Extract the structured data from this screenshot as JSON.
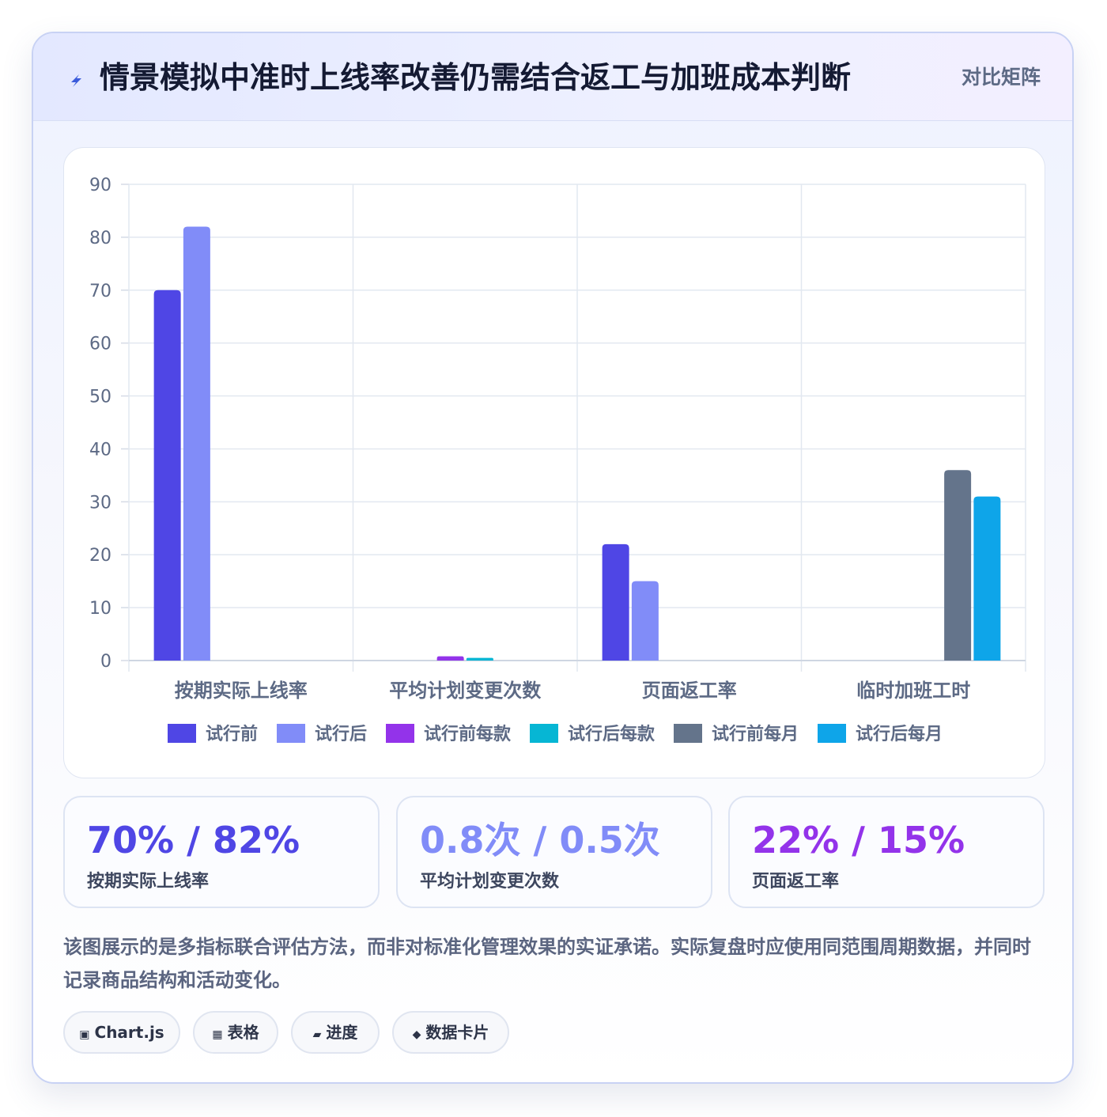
{
  "header": {
    "title": "情景模拟中准时上线率改善仍需结合返工与加班成本判断",
    "badge": "对比矩阵",
    "icon": "lightning-icon"
  },
  "chart_data": {
    "type": "bar",
    "categories": [
      "按期实际上线率",
      "平均计划变更次数",
      "页面返工率",
      "临时加班工时"
    ],
    "ylim": [
      0,
      90
    ],
    "yticks": [
      0,
      10,
      20,
      30,
      40,
      50,
      60,
      70,
      80,
      90
    ],
    "grid": true,
    "legend_position": "bottom",
    "series": [
      {
        "name": "试行前",
        "color": "#4f46e5",
        "values": [
          70,
          null,
          22,
          null
        ]
      },
      {
        "name": "试行后",
        "color": "#818cf8",
        "values": [
          82,
          null,
          15,
          null
        ]
      },
      {
        "name": "试行前每款",
        "color": "#9333ea",
        "values": [
          null,
          0.8,
          null,
          null
        ]
      },
      {
        "name": "试行后每款",
        "color": "#06b6d4",
        "values": [
          null,
          0.5,
          null,
          null
        ]
      },
      {
        "name": "试行前每月",
        "color": "#64748b",
        "values": [
          null,
          null,
          null,
          36
        ]
      },
      {
        "name": "试行后每月",
        "color": "#0ea5e9",
        "values": [
          null,
          null,
          null,
          31
        ]
      }
    ]
  },
  "stats": [
    {
      "value": "70% / 82%",
      "label": "按期实际上线率",
      "color": "#4f46e5"
    },
    {
      "value": "0.8次 / 0.5次",
      "label": "平均计划变更次数",
      "color": "#818cf8"
    },
    {
      "value": "22% / 15%",
      "label": "页面返工率",
      "color": "#9333ea"
    }
  ],
  "note": "该图展示的是多指标联合评估方法，而非对标准化管理效果的实证承诺。实际复盘时应使用同范围周期数据，并同时记录商品结构和活动变化。",
  "tags": [
    {
      "label": "Chart.js",
      "icon": "square-icon",
      "glyph": "▣"
    },
    {
      "label": "表格",
      "icon": "table-icon",
      "glyph": "▦"
    },
    {
      "label": "进度",
      "icon": "progress-icon",
      "glyph": "▰"
    },
    {
      "label": "数据卡片",
      "icon": "diamond-icon",
      "glyph": "◆"
    }
  ]
}
